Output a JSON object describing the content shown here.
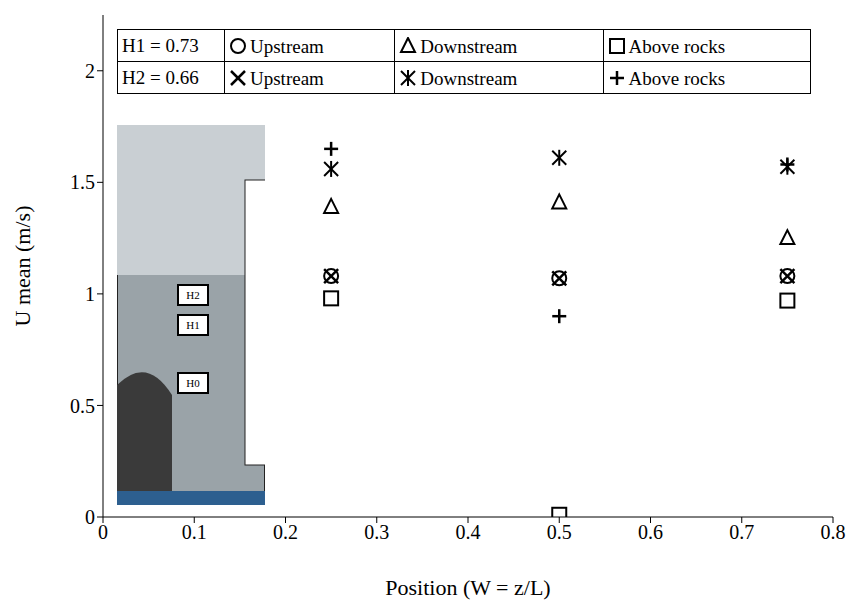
{
  "chart_data": {
    "type": "scatter",
    "x_label": "Position (W = z/L)",
    "y_label": "U mean (m/s)",
    "x": [
      0.25,
      0.5,
      0.75
    ],
    "series": [
      {
        "name": "Upstream",
        "group": "H1 = 0.73",
        "marker": "circle",
        "color": "#000000",
        "values": [
          1.08,
          1.07,
          1.08
        ]
      },
      {
        "name": "Downstream",
        "group": "H1 = 0.73",
        "marker": "triangle",
        "color": "#000000",
        "values": [
          1.39,
          1.41,
          1.25
        ]
      },
      {
        "name": "Above rocks",
        "group": "H1 = 0.73",
        "marker": "square",
        "color": "#000000",
        "values": [
          0.98,
          0.01,
          0.97
        ]
      },
      {
        "name": "Upstream",
        "group": "H2 = 0.66",
        "marker": "x",
        "color": "#000000",
        "values": [
          1.08,
          1.07,
          1.08
        ]
      },
      {
        "name": "Downstream",
        "group": "H2 = 0.66",
        "marker": "asterisk",
        "color": "#000000",
        "values": [
          1.56,
          1.61,
          1.57
        ]
      },
      {
        "name": "Above rocks",
        "group": "H2 = 0.66",
        "marker": "plus",
        "color": "#000000",
        "values": [
          1.65,
          0.9,
          1.58
        ]
      }
    ],
    "xlim": [
      0,
      0.8
    ],
    "xticks": [
      0,
      0.1,
      0.2,
      0.3,
      0.4,
      0.5,
      0.6,
      0.7,
      0.8
    ],
    "ylim": [
      0,
      2.25
    ],
    "yticks": [
      0,
      0.5,
      1,
      1.5,
      2
    ],
    "grid": false,
    "legend": "top-left",
    "annotations": [
      "H2",
      "H1",
      "H0"
    ]
  }
}
